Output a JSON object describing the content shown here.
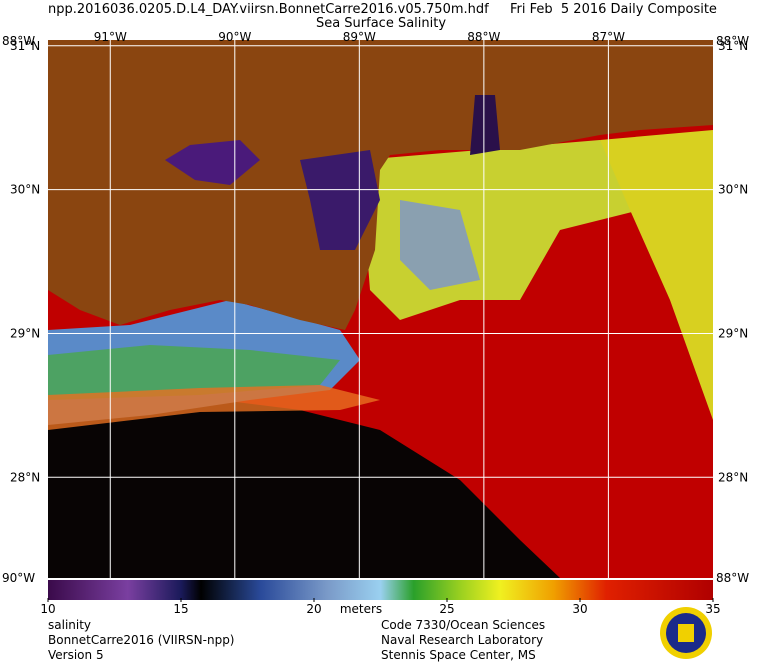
{
  "header": {
    "file": "npp.2016036.0205.D.L4_DAY.viirsn.BonnetCarre2016.v05.750m.hdf",
    "date": "Fri Feb  5 2016 Daily Composite",
    "title": "Sea Surface Salinity"
  },
  "map": {
    "lon_range": [
      -91.5,
      -86.16
    ],
    "lat_range": [
      27.3,
      31.04
    ],
    "lon_ticks": [
      {
        "value": -91,
        "label": "91°W"
      },
      {
        "value": -90,
        "label": "90°W"
      },
      {
        "value": -89,
        "label": "89°W"
      },
      {
        "value": -88,
        "label": "88°W"
      },
      {
        "value": -87,
        "label": "87°W"
      }
    ],
    "lat_ticks": [
      {
        "value": 31,
        "label": "31°N"
      },
      {
        "value": 30,
        "label": "30°N"
      },
      {
        "value": 29,
        "label": "29°N"
      },
      {
        "value": 28,
        "label": "28°N"
      }
    ],
    "corner_labels": [
      "88°W",
      "88°W",
      "90°W",
      "88°W"
    ]
  },
  "colorbar": {
    "lim": [
      10,
      35
    ],
    "ticks": [
      10,
      15,
      20,
      25,
      30,
      35
    ],
    "unit": "meters"
  },
  "footer": {
    "left": [
      "salinity",
      "BonnetCarre2016 (VIIRSN-npp)",
      "Version 5"
    ],
    "right": [
      "Code 7330/Ocean Sciences",
      "Naval Research Laboratory",
      "Stennis Space Center, MS"
    ]
  }
}
